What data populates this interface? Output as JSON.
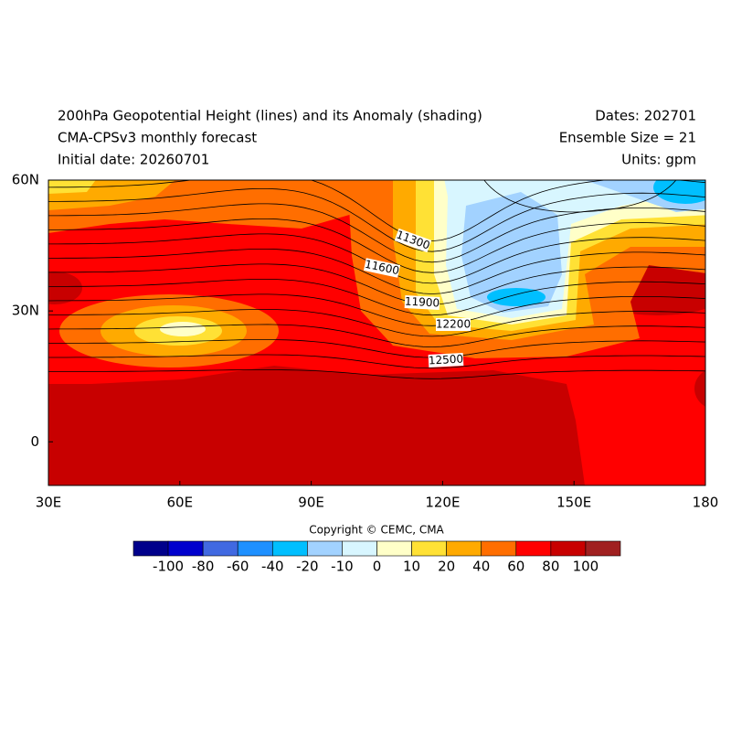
{
  "header": {
    "title": "200hPa Geopotential Height (lines) and its Anomaly (shading)",
    "subtitle": "CMA-CPSv3 monthly forecast",
    "initial_date": "Initial date: 20260701",
    "dates": "Dates: 202701",
    "ensemble": "Ensemble Size = 21",
    "units": "Units: gpm"
  },
  "map": {
    "xlim": [
      30,
      180
    ],
    "ylim": [
      -10,
      60
    ],
    "xticks": [
      {
        "value": 30,
        "label": "30E"
      },
      {
        "value": 60,
        "label": "60E"
      },
      {
        "value": 90,
        "label": "90E"
      },
      {
        "value": 120,
        "label": "120E"
      },
      {
        "value": 150,
        "label": "150E"
      },
      180
    ],
    "yticks": [
      {
        "value": 60,
        "label": "60N"
      },
      {
        "value": 30,
        "label": "30N"
      },
      0
    ],
    "contour_labels": [
      11300,
      11600,
      11900,
      12200,
      12500
    ],
    "copyright": "Copyright © CEMC, CMA"
  },
  "colorbar": {
    "levels": [
      -100,
      -80,
      -60,
      -40,
      -20,
      -10,
      0,
      10,
      20,
      40,
      60,
      80,
      100
    ],
    "colors": [
      "#00008b",
      "#0000cd",
      "#4169e1",
      "#1e90ff",
      "#00bfff",
      "#a2d2ff",
      "#d8f6ff",
      "#ffffc8",
      "#ffe135",
      "#ffaa00",
      "#ff6e00",
      "#ff0000",
      "#c80000",
      "#a02020"
    ]
  }
}
